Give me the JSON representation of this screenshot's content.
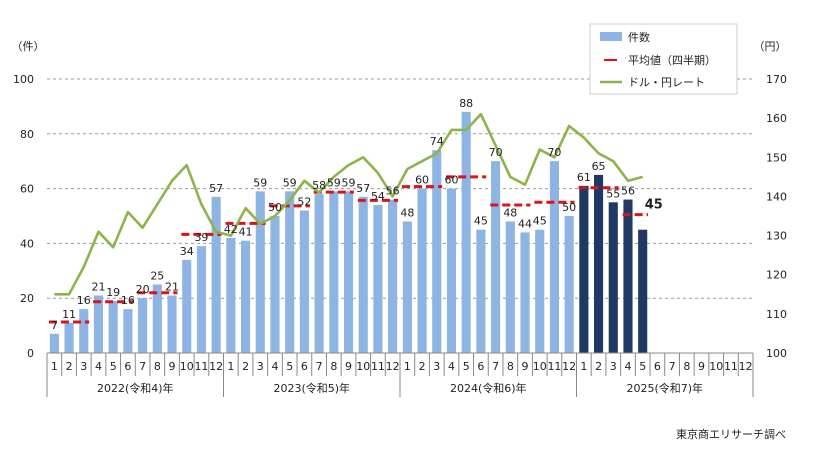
{
  "chart_data": {
    "type": "bar",
    "unit_left": "（件）",
    "unit_right": "（円）",
    "source": "東京商エリサーチ調べ",
    "colors": {
      "bar_past": "#8db4e2",
      "bar_current": "#1f3864",
      "avg_line": "#d9141b",
      "usd_line": "#8db44a",
      "grid": "#9a9a9a"
    },
    "yleft": {
      "ylim": [
        0,
        100
      ],
      "ticks": [
        "0",
        "20",
        "40",
        "60",
        "80",
        "100"
      ]
    },
    "yright": {
      "ylim": [
        100,
        170
      ],
      "ticks": [
        "100",
        "110",
        "120",
        "130",
        "140",
        "150",
        "160",
        "170"
      ]
    },
    "years": [
      {
        "label": "2022(令和4)年",
        "months": [
          "1",
          "2",
          "3",
          "4",
          "5",
          "6",
          "7",
          "8",
          "9",
          "10",
          "11",
          "12"
        ]
      },
      {
        "label": "2023(令和5)年",
        "months": [
          "1",
          "2",
          "3",
          "4",
          "5",
          "6",
          "7",
          "8",
          "9",
          "10",
          "11",
          "12"
        ]
      },
      {
        "label": "2024(令和6)年",
        "months": [
          "1",
          "2",
          "3",
          "4",
          "5",
          "6",
          "7",
          "8",
          "9",
          "10",
          "11",
          "12"
        ]
      },
      {
        "label": "2025(令和7)年",
        "months": [
          "1",
          "2",
          "3",
          "4",
          "5",
          "6",
          "7",
          "8",
          "9",
          "10",
          "11",
          "12"
        ]
      }
    ],
    "legend": [
      {
        "key": "bars",
        "label": "件数"
      },
      {
        "key": "avg",
        "label": "平均値（四半期）"
      },
      {
        "key": "usd",
        "label": "ドル・円レート"
      }
    ],
    "series": [
      {
        "name": "件数",
        "values": [
          7,
          11,
          16,
          21,
          19,
          16,
          20,
          25,
          21,
          34,
          39,
          57,
          42,
          41,
          59,
          50,
          59,
          52,
          58,
          59,
          59,
          57,
          54,
          56,
          48,
          60,
          74,
          60,
          88,
          45,
          70,
          48,
          44,
          45,
          70,
          50,
          61,
          65,
          55,
          56,
          45
        ],
        "labels": [
          "7",
          "11",
          "16",
          "21",
          "19",
          "16",
          "20",
          "25",
          "21",
          "34",
          "39",
          "57",
          "42",
          "41",
          "59",
          "50",
          "59",
          "52",
          "58",
          "59",
          "59",
          "57",
          "54",
          "56",
          "48",
          "60",
          "74",
          "60",
          "88",
          "45",
          "70",
          "48",
          "44",
          "45",
          "70",
          "50",
          "61",
          "65",
          "55",
          "56",
          ""
        ],
        "current_from_index": 36
      },
      {
        "name": "平均値（四半期）",
        "quarters": [
          {
            "start": 0,
            "end": 2,
            "value": 11.3
          },
          {
            "start": 3,
            "end": 5,
            "value": 18.7
          },
          {
            "start": 6,
            "end": 8,
            "value": 22
          },
          {
            "start": 9,
            "end": 11,
            "value": 43.3
          },
          {
            "start": 12,
            "end": 14,
            "value": 47.3
          },
          {
            "start": 15,
            "end": 17,
            "value": 53.7
          },
          {
            "start": 18,
            "end": 20,
            "value": 58.7
          },
          {
            "start": 21,
            "end": 23,
            "value": 55.7
          },
          {
            "start": 24,
            "end": 26,
            "value": 60.7
          },
          {
            "start": 27,
            "end": 29,
            "value": 64.3
          },
          {
            "start": 30,
            "end": 32,
            "value": 54
          },
          {
            "start": 33,
            "end": 35,
            "value": 55
          },
          {
            "start": 36,
            "end": 38,
            "value": 60.3
          },
          {
            "start": 39,
            "end": 40,
            "value": 50.5
          }
        ],
        "highlight_label": "45"
      },
      {
        "name": "ドル・円レート",
        "values": [
          115,
          115,
          122,
          131,
          127,
          136,
          132,
          138,
          144,
          148,
          138,
          131,
          130,
          137,
          133,
          135,
          139,
          144,
          141,
          145,
          148,
          150,
          146,
          140,
          147,
          149,
          151,
          157,
          157,
          161,
          153,
          145,
          143,
          152,
          150,
          158,
          155,
          151,
          149,
          144,
          145
        ]
      }
    ]
  }
}
